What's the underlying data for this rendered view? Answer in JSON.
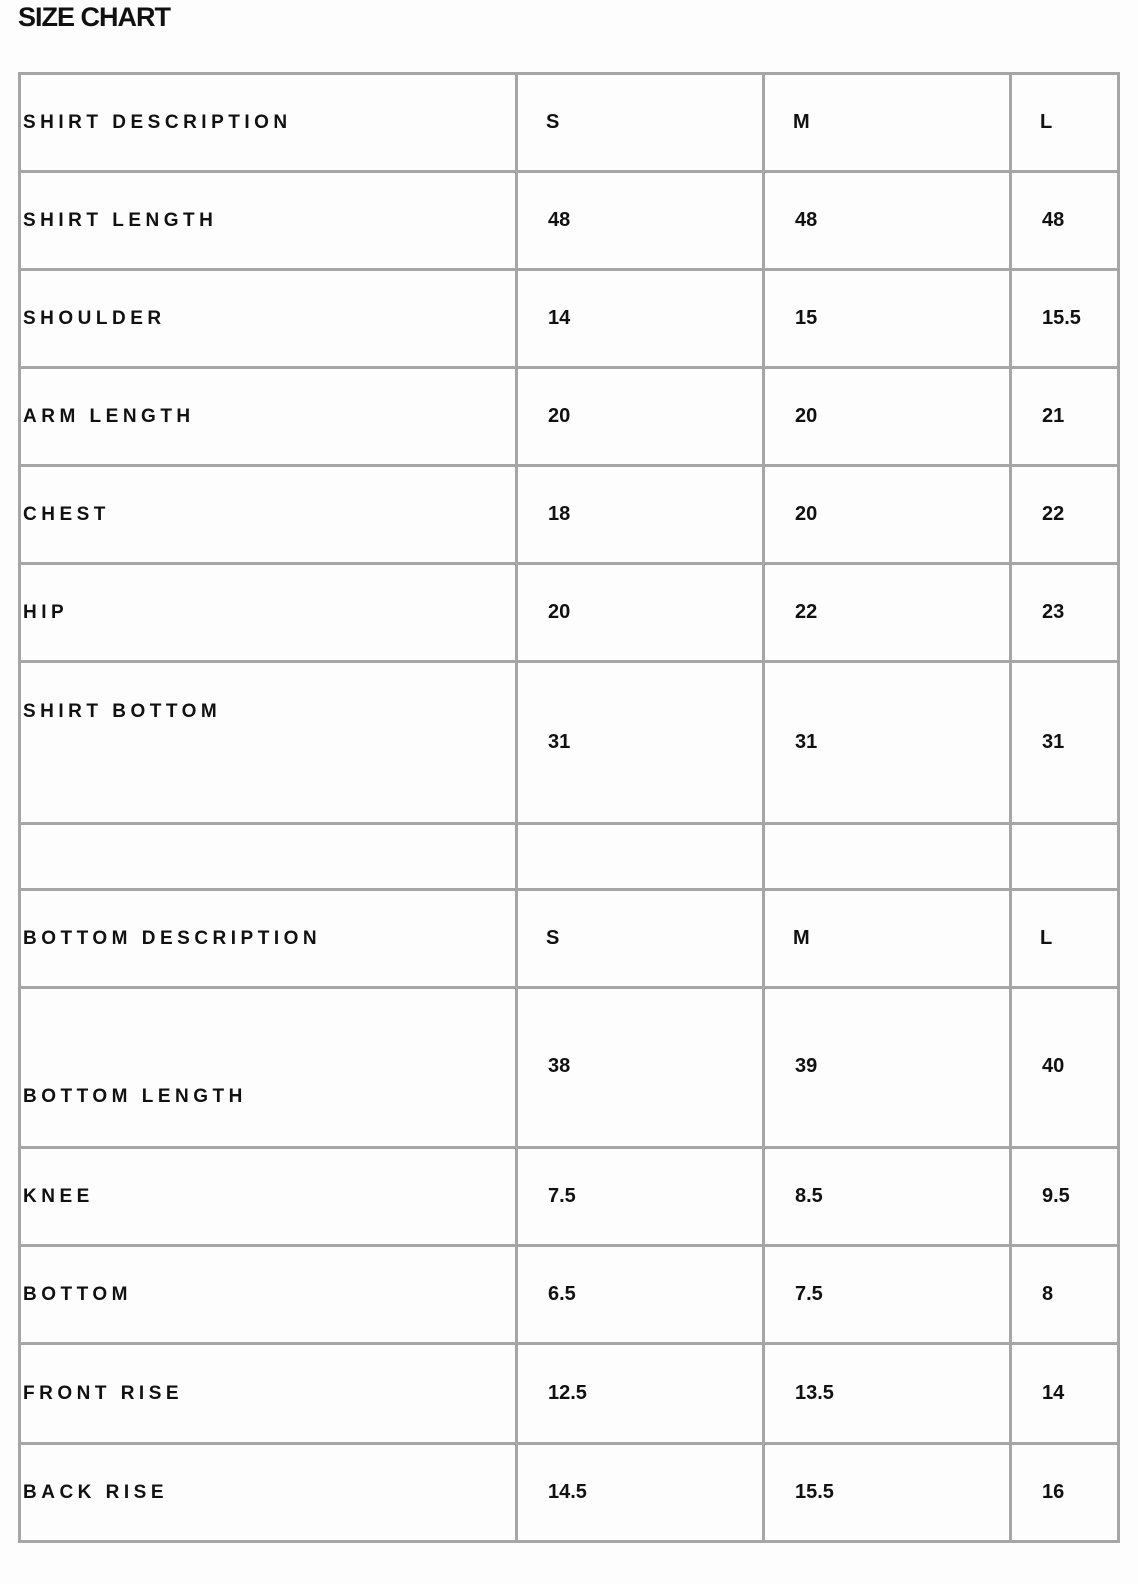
{
  "title": "SIZE CHART",
  "rows": [
    {
      "label": "SHIRT DESCRIPTION",
      "values": [
        "S",
        "M",
        "L"
      ],
      "header": true
    },
    {
      "label": "SHIRT LENGTH",
      "values": [
        "48",
        "48",
        "48"
      ]
    },
    {
      "label": "SHOULDER",
      "values": [
        "14",
        "15",
        "15.5"
      ]
    },
    {
      "label": "ARM LENGTH",
      "values": [
        "20",
        "20",
        "21"
      ]
    },
    {
      "label": "CHEST",
      "values": [
        "18",
        "20",
        "22"
      ]
    },
    {
      "label": "HIP",
      "values": [
        "20",
        "22",
        "23"
      ]
    },
    {
      "label": "SHIRT BOTTOM",
      "values": [
        "31",
        "31",
        "31"
      ]
    },
    {
      "label": "",
      "values": [
        "",
        "",
        ""
      ]
    },
    {
      "label": "BOTTOM DESCRIPTION",
      "values": [
        "S",
        "M",
        "L"
      ],
      "header": true
    },
    {
      "label": "BOTTOM LENGTH",
      "values": [
        "38",
        "39",
        "40"
      ]
    },
    {
      "label": "KNEE",
      "values": [
        "7.5",
        "8.5",
        "9.5"
      ]
    },
    {
      "label": "BOTTOM",
      "values": [
        "6.5",
        "7.5",
        "8"
      ]
    },
    {
      "label": "FRONT RISE",
      "values": [
        "12.5",
        "13.5",
        "14"
      ]
    },
    {
      "label": "BACK RISE",
      "values": [
        "14.5",
        "15.5",
        "16"
      ]
    }
  ]
}
